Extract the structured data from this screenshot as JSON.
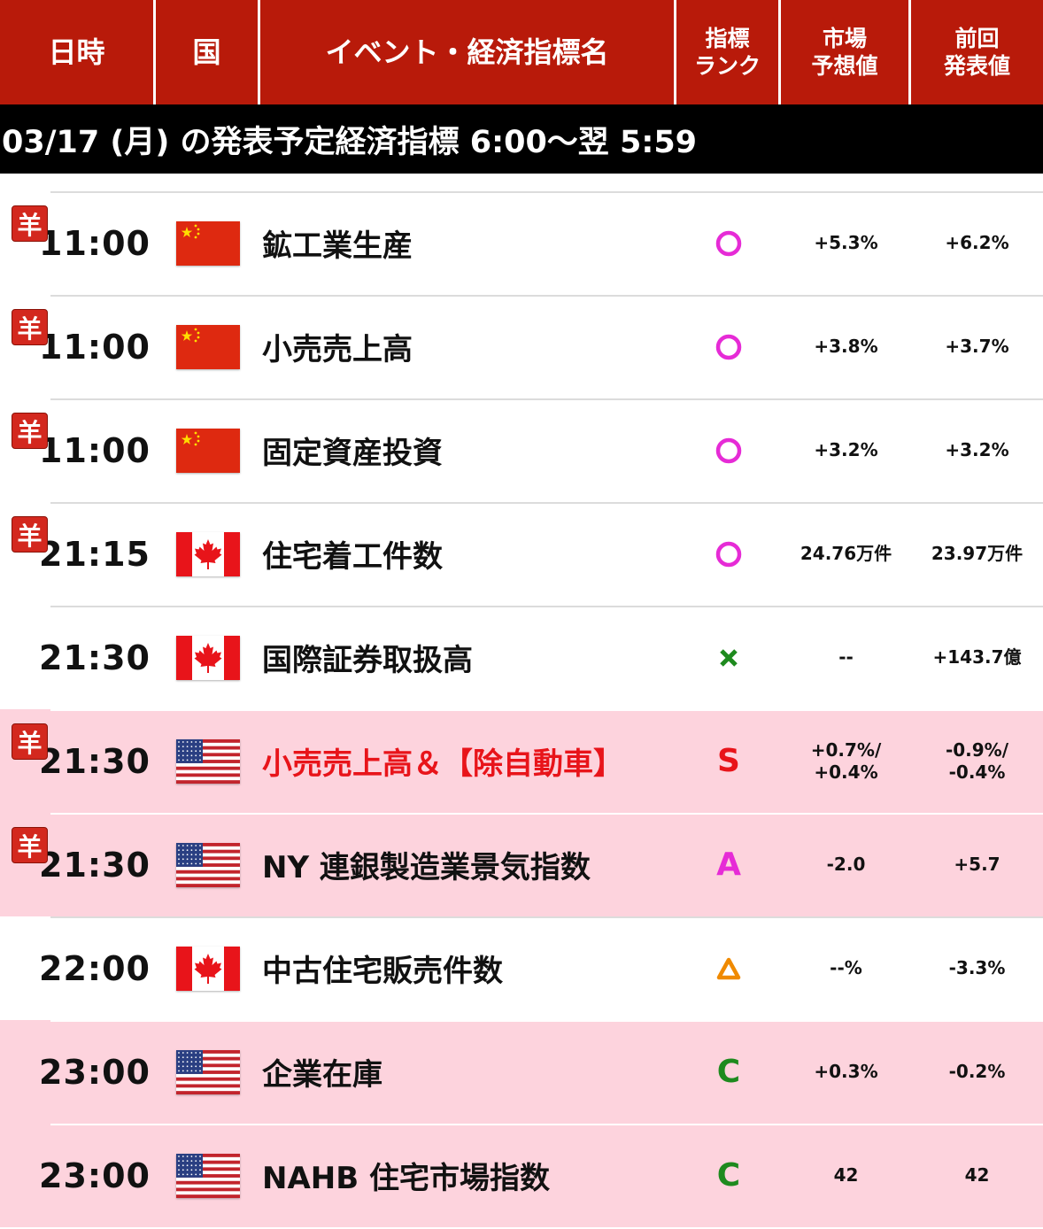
{
  "header": {
    "time": "日時",
    "country": "国",
    "event": "イベント・経済指標名",
    "rank_line1": "指標",
    "rank_line2": "ランク",
    "forecast_line1": "市場",
    "forecast_line2": "予想値",
    "previous_line1": "前回",
    "previous_line2": "発表値"
  },
  "date_band": "03/17 (月) の発表予定経済指標 6:00～翌 5:59",
  "colors": {
    "header_red": "#b81a0a",
    "highlight_pink": "#fdd3dd",
    "badge_red": "#d3281e"
  },
  "rows": [
    {
      "badge": "羊",
      "time": "11:00",
      "flag": "china-flag",
      "event": "鉱工業生産",
      "rank": "circle",
      "rank_color": "#e62bd6",
      "forecast": "+5.3%",
      "forecast2": "",
      "previous": "+6.2%",
      "previous2": "",
      "highlight": false,
      "red_text": false
    },
    {
      "badge": "羊",
      "time": "11:00",
      "flag": "china-flag",
      "event": "小売売上高",
      "rank": "circle",
      "rank_color": "#e62bd6",
      "forecast": "+3.8%",
      "forecast2": "",
      "previous": "+3.7%",
      "previous2": "",
      "highlight": false,
      "red_text": false
    },
    {
      "badge": "羊",
      "time": "11:00",
      "flag": "china-flag",
      "event": "固定資産投資",
      "rank": "circle",
      "rank_color": "#e62bd6",
      "forecast": "+3.2%",
      "forecast2": "",
      "previous": "+3.2%",
      "previous2": "",
      "highlight": false,
      "red_text": false
    },
    {
      "badge": "羊",
      "time": "21:15",
      "flag": "canada-flag",
      "event": "住宅着工件数",
      "rank": "circle",
      "rank_color": "#e62bd6",
      "forecast": "24.76万件",
      "forecast2": "",
      "previous": "23.97万件",
      "previous2": "",
      "highlight": false,
      "red_text": false
    },
    {
      "badge": "",
      "time": "21:30",
      "flag": "canada-flag",
      "event": "国際証券取扱高",
      "rank": "cross",
      "rank_color": "#1e8a1e",
      "forecast": "--",
      "forecast2": "",
      "previous": "+143.7億",
      "previous2": "",
      "highlight": false,
      "red_text": false
    },
    {
      "badge": "羊",
      "time": "21:30",
      "flag": "usa-flag",
      "event": "小売売上高＆【除自動車】",
      "rank": "S",
      "rank_color": "#e8141a",
      "forecast": "+0.7%/",
      "forecast2": "+0.4%",
      "previous": "-0.9%/",
      "previous2": "-0.4%",
      "highlight": true,
      "red_text": true
    },
    {
      "badge": "羊",
      "time": "21:30",
      "flag": "usa-flag",
      "event": "NY 連銀製造業景気指数",
      "rank": "A",
      "rank_color": "#e62bd6",
      "forecast": "-2.0",
      "forecast2": "",
      "previous": "+5.7",
      "previous2": "",
      "highlight": true,
      "red_text": false
    },
    {
      "badge": "",
      "time": "22:00",
      "flag": "canada-flag",
      "event": "中古住宅販売件数",
      "rank": "triangle",
      "rank_color": "#f08a00",
      "forecast": "--%",
      "forecast2": "",
      "previous": "-3.3%",
      "previous2": "",
      "highlight": false,
      "red_text": false
    },
    {
      "badge": "",
      "time": "23:00",
      "flag": "usa-flag",
      "event": "企業在庫",
      "rank": "C",
      "rank_color": "#1e8a1e",
      "forecast": "+0.3%",
      "forecast2": "",
      "previous": "-0.2%",
      "previous2": "",
      "highlight": true,
      "red_text": false
    },
    {
      "badge": "",
      "time": "23:00",
      "flag": "usa-flag",
      "event": "NAHB 住宅市場指数",
      "rank": "C",
      "rank_color": "#1e8a1e",
      "forecast": "42",
      "forecast2": "",
      "previous": "42",
      "previous2": "",
      "highlight": true,
      "red_text": false
    }
  ]
}
